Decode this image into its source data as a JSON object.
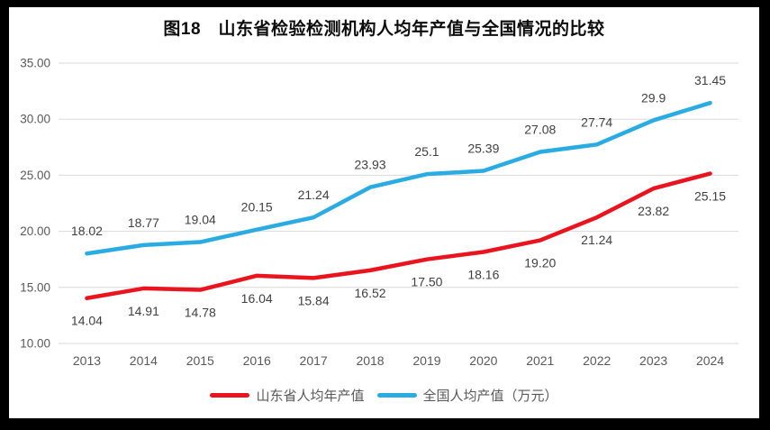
{
  "chart_data": {
    "type": "line",
    "title": "图18　山东省检验检测机构人均年产值与全国情况的比较",
    "categories": [
      "2013",
      "2014",
      "2015",
      "2016",
      "2017",
      "2018",
      "2019",
      "2020",
      "2021",
      "2022",
      "2023",
      "2024"
    ],
    "series": [
      {
        "name": "山东省人均年产值",
        "color": "#e9141d",
        "label_position": "below",
        "values": [
          14.04,
          14.91,
          14.78,
          16.04,
          15.84,
          16.52,
          17.5,
          18.16,
          19.2,
          21.24,
          23.82,
          25.15
        ],
        "labels": [
          "14.04",
          "14.91",
          "14.78",
          "16.04",
          "15.84",
          "16.52",
          "17.50",
          "18.16",
          "19.20",
          "21.24",
          "23.82",
          "25.15"
        ]
      },
      {
        "name": "全国人均产值（万元）",
        "color": "#2aace2",
        "label_position": "above",
        "values": [
          18.02,
          18.77,
          19.04,
          20.15,
          21.24,
          23.93,
          25.1,
          25.39,
          27.08,
          27.74,
          29.9,
          31.45
        ],
        "labels": [
          "18.02",
          "18.77",
          "19.04",
          "20.15",
          "21.24",
          "23.93",
          "25.1",
          "25.39",
          "27.08",
          "27.74",
          "29.9",
          "31.45"
        ]
      }
    ],
    "ylim": [
      10,
      35
    ],
    "ytick_step": 5,
    "yticks": [
      "35.00",
      "30.00",
      "25.00",
      "20.00",
      "15.00",
      "10.00"
    ],
    "grid": "horizontal",
    "legend_position": "bottom",
    "axis_text_color": "#595959",
    "grid_color": "#dadada",
    "data_label_color": "#404040",
    "background_color": "#ffffff",
    "frame_color": "#000000"
  }
}
